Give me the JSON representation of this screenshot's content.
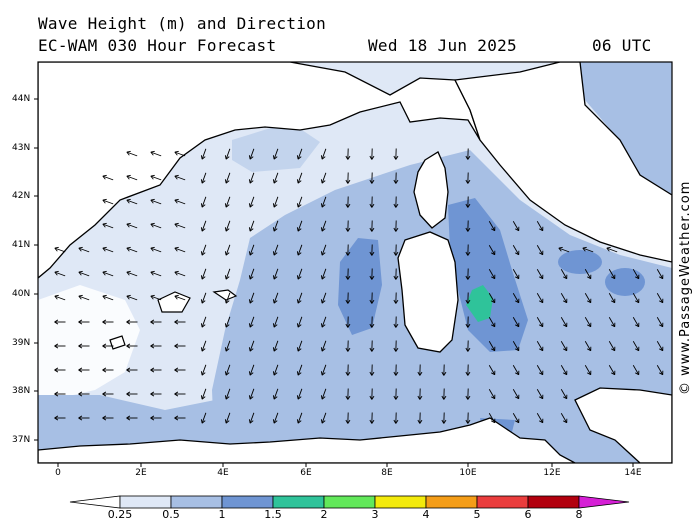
{
  "header": {
    "title_line1": "Wave Height (m) and Direction",
    "title_line2": "EC-WAM 030 Hour Forecast",
    "date": "Wed 18 Jun 2025",
    "time": "06 UTC"
  },
  "credit": "© www.PassageWeather.com",
  "axes": {
    "lat_labels": [
      "44N",
      "43N",
      "42N",
      "41N",
      "40N",
      "39N",
      "38N",
      "37N"
    ],
    "lon_labels": [
      "0",
      "2E",
      "4E",
      "6E",
      "8E",
      "10E",
      "12E",
      "14E"
    ]
  },
  "legend": {
    "labels": [
      "0.25",
      "0.5",
      "1",
      "1.5",
      "2",
      "3",
      "4",
      "5",
      "6",
      "8"
    ],
    "colors": [
      "#ffffff",
      "#dfe8f6",
      "#a7bfe4",
      "#6f95d3",
      "#2fc39a",
      "#62e85a",
      "#f3ea0c",
      "#f49d18",
      "#ea3d3d",
      "#b2000e",
      "#d51fd5"
    ]
  },
  "colors": {
    "sea_low": "#dfe8f6",
    "sea_mid": "#a7bfe4",
    "sea_high": "#6f95d3",
    "sea_peak": "#2fc39a",
    "land": "#ffffff"
  }
}
